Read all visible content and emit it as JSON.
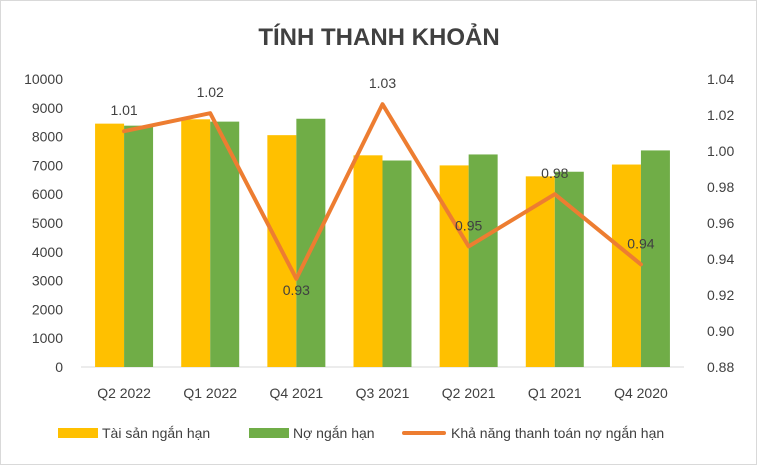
{
  "chart_data": {
    "type": "bar",
    "title": "TÍNH THANH KHOẢN",
    "categories": [
      "Q2 2022",
      "Q1 2022",
      "Q4 2021",
      "Q3 2021",
      "Q2 2021",
      "Q1 2021",
      "Q4 2020"
    ],
    "series": [
      {
        "name": "Tài sản ngắn hạn",
        "type": "bar",
        "axis": "left",
        "color": "#FFC000",
        "values": [
          8450,
          8600,
          8050,
          7350,
          7000,
          6620,
          7030
        ]
      },
      {
        "name": "Nợ ngắn hạn",
        "type": "bar",
        "axis": "left",
        "color": "#70AD47",
        "values": [
          8380,
          8520,
          8620,
          7170,
          7380,
          6780,
          7520
        ]
      },
      {
        "name": "Khả năng thanh toán nợ ngắn hạn",
        "type": "line",
        "axis": "right",
        "color": "#ED7D31",
        "values": [
          1.01,
          1.02,
          0.93,
          1.03,
          0.95,
          0.98,
          0.94
        ],
        "plotted": [
          1.011,
          1.021,
          0.929,
          1.026,
          0.947,
          0.976,
          0.937
        ],
        "labels": [
          "1.01",
          "1.02",
          "0.93",
          "1.03",
          "0.95",
          "0.98",
          "0.94"
        ]
      }
    ],
    "y_left": {
      "min": 0,
      "max": 10000,
      "step": 1000,
      "ticks": [
        "0",
        "1000",
        "2000",
        "3000",
        "4000",
        "5000",
        "6000",
        "7000",
        "8000",
        "9000",
        "10000"
      ]
    },
    "y_right": {
      "min": 0.88,
      "max": 1.04,
      "step": 0.02,
      "ticks": [
        "0.88",
        "0.90",
        "0.92",
        "0.94",
        "0.96",
        "0.98",
        "1.00",
        "1.02",
        "1.04"
      ]
    },
    "grid": false,
    "legend": "bottom"
  }
}
